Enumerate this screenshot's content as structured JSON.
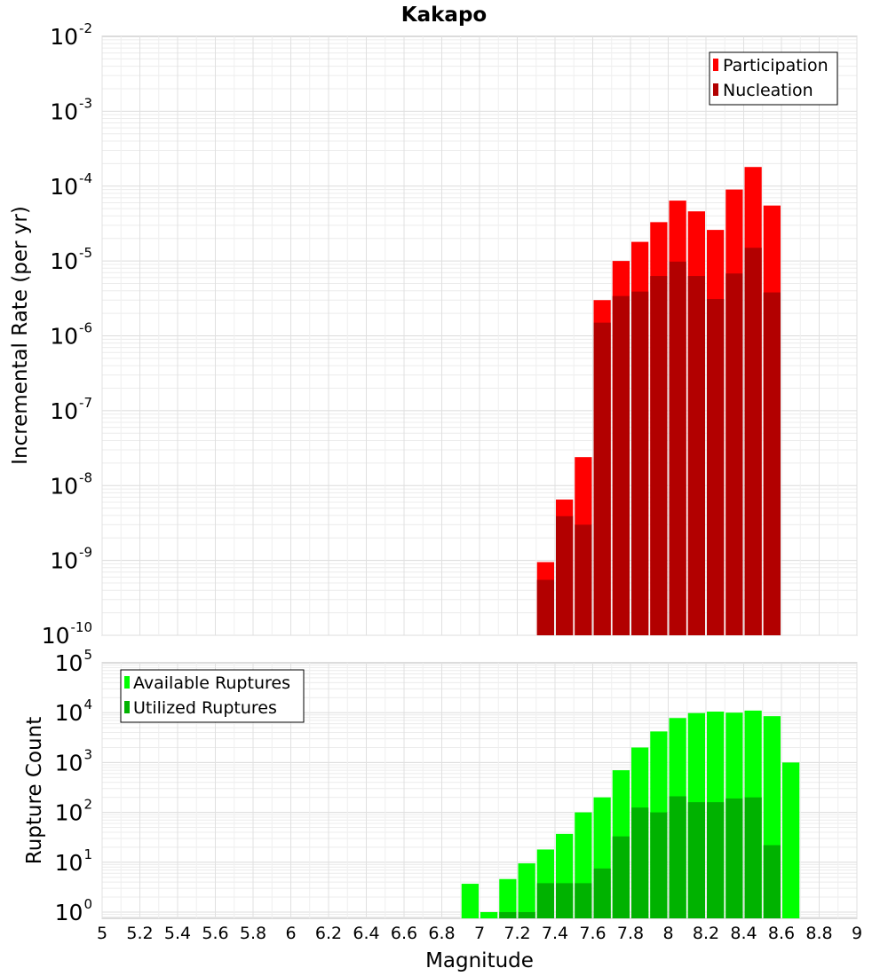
{
  "chart_data": [
    {
      "type": "bar",
      "title": "Kakapo",
      "ylabel": "Incremental Rate (per yr)",
      "xlabel": "",
      "yscale": "log",
      "ylim": [
        1e-10,
        0.01
      ],
      "xlim": [
        5,
        9
      ],
      "yticks": [
        {
          "base": "10",
          "exp": "-10",
          "value": 1e-10
        },
        {
          "base": "10",
          "exp": "-9",
          "value": 1e-09
        },
        {
          "base": "10",
          "exp": "-8",
          "value": 1e-08
        },
        {
          "base": "10",
          "exp": "-7",
          "value": 1e-07
        },
        {
          "base": "10",
          "exp": "-6",
          "value": 1e-06
        },
        {
          "base": "10",
          "exp": "-5",
          "value": 1e-05
        },
        {
          "base": "10",
          "exp": "-4",
          "value": 0.0001
        },
        {
          "base": "10",
          "exp": "-3",
          "value": 0.001
        },
        {
          "base": "10",
          "exp": "-2",
          "value": 0.01
        }
      ],
      "grid": true,
      "legend_position": "top-right",
      "bin_width": 0.1,
      "x": [
        7.35,
        7.45,
        7.55,
        7.65,
        7.75,
        7.85,
        7.95,
        8.05,
        8.15,
        8.25,
        8.35,
        8.45,
        8.55
      ],
      "series": [
        {
          "name": "Participation",
          "color": "#ff0000",
          "values": [
            9.5e-10,
            6.5e-09,
            2.4e-08,
            3e-06,
            1e-05,
            1.8e-05,
            3.3e-05,
            6.4e-05,
            4.6e-05,
            2.6e-05,
            9e-05,
            0.00018,
            5.5e-05
          ]
        },
        {
          "name": "Nucleation",
          "color": "#b20000",
          "values": [
            5.5e-10,
            3.9e-09,
            3e-09,
            1.5e-06,
            3.4e-06,
            3.9e-06,
            6.3e-06,
            9.8e-06,
            6.3e-06,
            3.1e-06,
            6.8e-06,
            1.5e-05,
            3.8e-06
          ]
        }
      ]
    },
    {
      "type": "bar",
      "title": "",
      "ylabel": "Rupture Count",
      "xlabel": "Magnitude",
      "yscale": "log",
      "ylim": [
        0.75,
        100000.0
      ],
      "xlim": [
        5,
        9
      ],
      "xticks": [
        "5",
        "5.2",
        "5.4",
        "5.6",
        "5.8",
        "6",
        "6.2",
        "6.4",
        "6.6",
        "6.8",
        "7",
        "7.2",
        "7.4",
        "7.6",
        "7.8",
        "8",
        "8.2",
        "8.4",
        "8.6",
        "8.8",
        "9"
      ],
      "yticks": [
        {
          "base": "10",
          "exp": "0",
          "value": 1
        },
        {
          "base": "10",
          "exp": "1",
          "value": 10
        },
        {
          "base": "10",
          "exp": "2",
          "value": 100
        },
        {
          "base": "10",
          "exp": "3",
          "value": 1000
        },
        {
          "base": "10",
          "exp": "4",
          "value": 10000
        },
        {
          "base": "10",
          "exp": "5",
          "value": 100000
        }
      ],
      "grid": true,
      "legend_position": "top-left",
      "bin_width": 0.1,
      "x": [
        6.95,
        7.05,
        7.15,
        7.25,
        7.35,
        7.45,
        7.55,
        7.65,
        7.75,
        7.85,
        7.95,
        8.05,
        8.15,
        8.25,
        8.35,
        8.45,
        8.55,
        8.65
      ],
      "series": [
        {
          "name": "Available Ruptures",
          "color": "#00ff00",
          "values": [
            3.7,
            1,
            4.6,
            9.5,
            18,
            37,
            100,
            200,
            700,
            2000,
            4200,
            7800,
            9800,
            10500,
            10000,
            11000,
            8500,
            1000
          ]
        },
        {
          "name": "Utilized Ruptures",
          "color": "#00b200",
          "values": [
            0,
            0,
            1,
            1,
            3.8,
            3.8,
            3.8,
            7.5,
            33,
            125,
            100,
            210,
            160,
            160,
            190,
            200,
            22,
            0
          ]
        }
      ]
    }
  ]
}
